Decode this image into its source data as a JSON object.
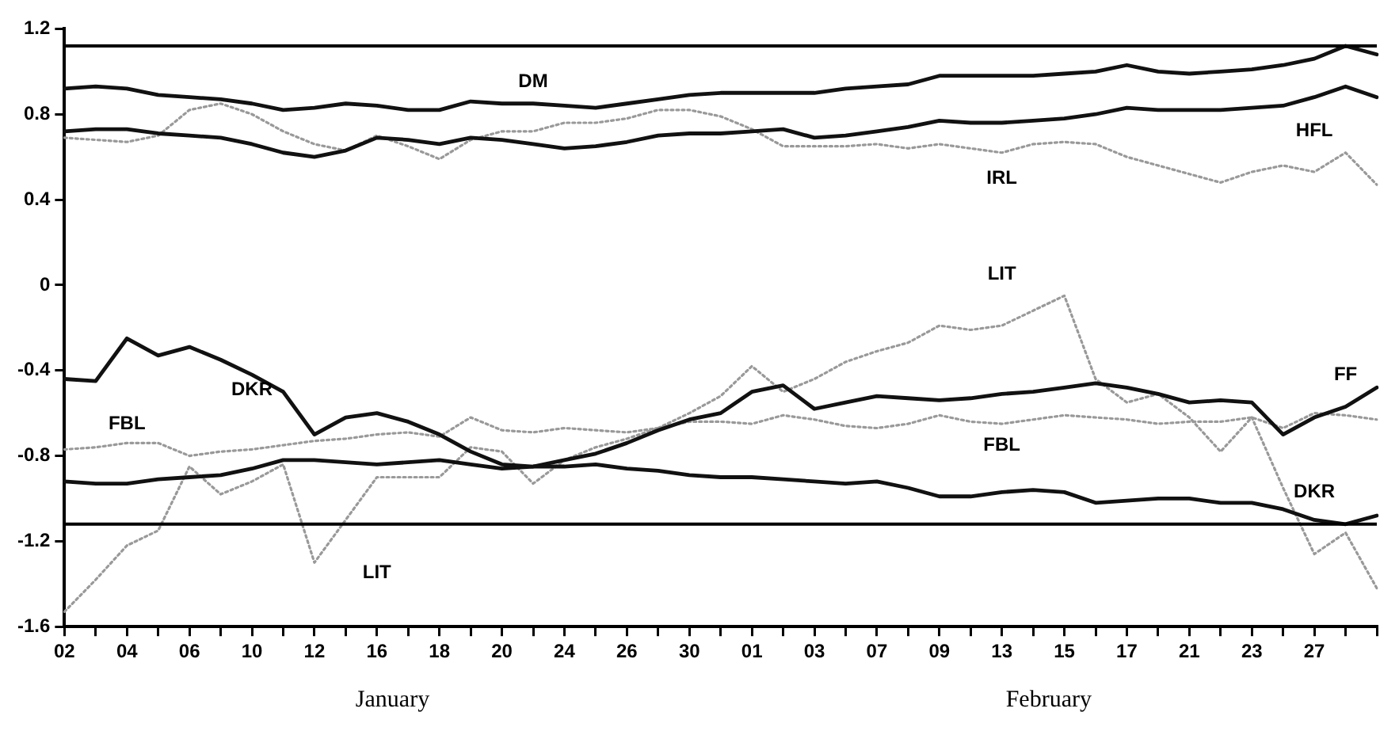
{
  "chart_data": {
    "type": "line",
    "categories": [
      "02",
      null,
      "04",
      null,
      "06",
      null,
      "10",
      null,
      "12",
      null,
      "16",
      null,
      "18",
      null,
      "20",
      null,
      "24",
      null,
      "26",
      null,
      "30",
      null,
      "01",
      null,
      "03",
      null,
      "07",
      null,
      "09",
      null,
      "13",
      null,
      "15",
      null,
      "17",
      null,
      "21",
      null,
      "23",
      null,
      "27",
      null,
      null
    ],
    "ylim": [
      -1.6,
      1.2
    ],
    "yticks": [
      1.2,
      0.8,
      0.4,
      0,
      -0.4,
      -0.8,
      -1.2,
      -1.6
    ],
    "grid": false,
    "legend": false,
    "marker": "none",
    "ref_lines": [
      {
        "axis": "y",
        "value": 1.12,
        "color": "#000000"
      },
      {
        "axis": "y",
        "value": -1.12,
        "color": "#000000"
      }
    ],
    "annotations": [
      "January",
      "February"
    ],
    "series": [
      {
        "name": "DM",
        "color": "#111111",
        "line_style": "solid",
        "values": [
          0.92,
          0.93,
          0.92,
          0.89,
          0.88,
          0.87,
          0.85,
          0.82,
          0.83,
          0.85,
          0.84,
          0.82,
          0.82,
          0.86,
          0.85,
          0.85,
          0.84,
          0.83,
          0.85,
          0.87,
          0.89,
          0.9,
          0.9,
          0.9,
          0.9,
          0.92,
          0.93,
          0.94,
          0.98,
          0.98,
          0.98,
          0.98,
          0.99,
          1.0,
          1.03,
          1.0,
          0.99,
          1.0,
          1.01,
          1.03,
          1.06,
          1.12,
          1.08
        ]
      },
      {
        "name": "HFL",
        "color": "#111111",
        "line_style": "solid",
        "values": [
          0.72,
          0.73,
          0.73,
          0.71,
          0.7,
          0.69,
          0.66,
          0.62,
          0.6,
          0.63,
          0.69,
          0.68,
          0.66,
          0.69,
          0.68,
          0.66,
          0.64,
          0.65,
          0.67,
          0.7,
          0.71,
          0.71,
          0.72,
          0.73,
          0.69,
          0.7,
          0.72,
          0.74,
          0.77,
          0.76,
          0.76,
          0.77,
          0.78,
          0.8,
          0.83,
          0.82,
          0.82,
          0.82,
          0.83,
          0.84,
          0.88,
          0.93,
          0.88
        ]
      },
      {
        "name": "IRL",
        "color": "#999999",
        "line_style": "dotted",
        "values": [
          0.69,
          0.68,
          0.67,
          0.7,
          0.82,
          0.85,
          0.8,
          0.72,
          0.66,
          0.63,
          0.7,
          0.65,
          0.59,
          0.68,
          0.72,
          0.72,
          0.76,
          0.76,
          0.78,
          0.82,
          0.82,
          0.79,
          0.73,
          0.65,
          0.65,
          0.65,
          0.66,
          0.64,
          0.66,
          0.64,
          0.62,
          0.66,
          0.67,
          0.66,
          0.6,
          0.56,
          0.52,
          0.48,
          0.53,
          0.56,
          0.53,
          0.62,
          0.47
        ]
      },
      {
        "name": "DKR",
        "color": "#111111",
        "line_style": "solid",
        "values": [
          -0.44,
          -0.45,
          -0.25,
          -0.33,
          -0.29,
          -0.35,
          -0.42,
          -0.5,
          -0.7,
          -0.62,
          -0.6,
          -0.64,
          -0.7,
          -0.78,
          -0.84,
          -0.85,
          -0.85,
          -0.84,
          -0.86,
          -0.87,
          -0.89,
          -0.9,
          -0.9,
          -0.91,
          -0.92,
          -0.93,
          -0.92,
          -0.95,
          -0.99,
          -0.99,
          -0.97,
          -0.96,
          -0.97,
          -1.02,
          -1.01,
          -1.0,
          -1.0,
          -1.02,
          -1.02,
          -1.05,
          -1.1,
          -1.12,
          -1.08
        ]
      },
      {
        "name": "FF",
        "color": "#111111",
        "line_style": "solid",
        "values": [
          -0.92,
          -0.93,
          -0.93,
          -0.91,
          -0.9,
          -0.89,
          -0.86,
          -0.82,
          -0.82,
          -0.83,
          -0.84,
          -0.83,
          -0.82,
          -0.84,
          -0.86,
          -0.85,
          -0.82,
          -0.79,
          -0.74,
          -0.68,
          -0.63,
          -0.6,
          -0.5,
          -0.47,
          -0.58,
          -0.55,
          -0.52,
          -0.53,
          -0.54,
          -0.53,
          -0.51,
          -0.5,
          -0.48,
          -0.46,
          -0.48,
          -0.51,
          -0.55,
          -0.54,
          -0.55,
          -0.7,
          -0.62,
          -0.57,
          -0.48
        ]
      },
      {
        "name": "FBL",
        "color": "#999999",
        "line_style": "dotted",
        "values": [
          -0.77,
          -0.76,
          -0.74,
          -0.74,
          -0.8,
          -0.78,
          -0.77,
          -0.75,
          -0.73,
          -0.72,
          -0.7,
          -0.69,
          -0.71,
          -0.62,
          -0.68,
          -0.69,
          -0.67,
          -0.68,
          -0.69,
          -0.67,
          -0.64,
          -0.64,
          -0.65,
          -0.61,
          -0.63,
          -0.66,
          -0.67,
          -0.65,
          -0.61,
          -0.64,
          -0.65,
          -0.63,
          -0.61,
          -0.62,
          -0.63,
          -0.65,
          -0.64,
          -0.64,
          -0.62,
          -0.67,
          -0.6,
          -0.61,
          -0.63
        ]
      },
      {
        "name": "LIT",
        "color": "#999999",
        "line_style": "dotted",
        "values": [
          -1.53,
          -1.38,
          -1.22,
          -1.15,
          -0.85,
          -0.98,
          -0.92,
          -0.84,
          -1.3,
          -1.1,
          -0.9,
          -0.9,
          -0.9,
          -0.76,
          -0.78,
          -0.93,
          -0.82,
          -0.76,
          -0.72,
          -0.67,
          -0.6,
          -0.52,
          -0.38,
          -0.5,
          -0.44,
          -0.36,
          -0.31,
          -0.27,
          -0.19,
          -0.21,
          -0.19,
          -0.12,
          -0.05,
          -0.44,
          -0.55,
          -0.51,
          -0.62,
          -0.78,
          -0.62,
          -0.95,
          -1.26,
          -1.16,
          -1.42
        ]
      }
    ]
  }
}
